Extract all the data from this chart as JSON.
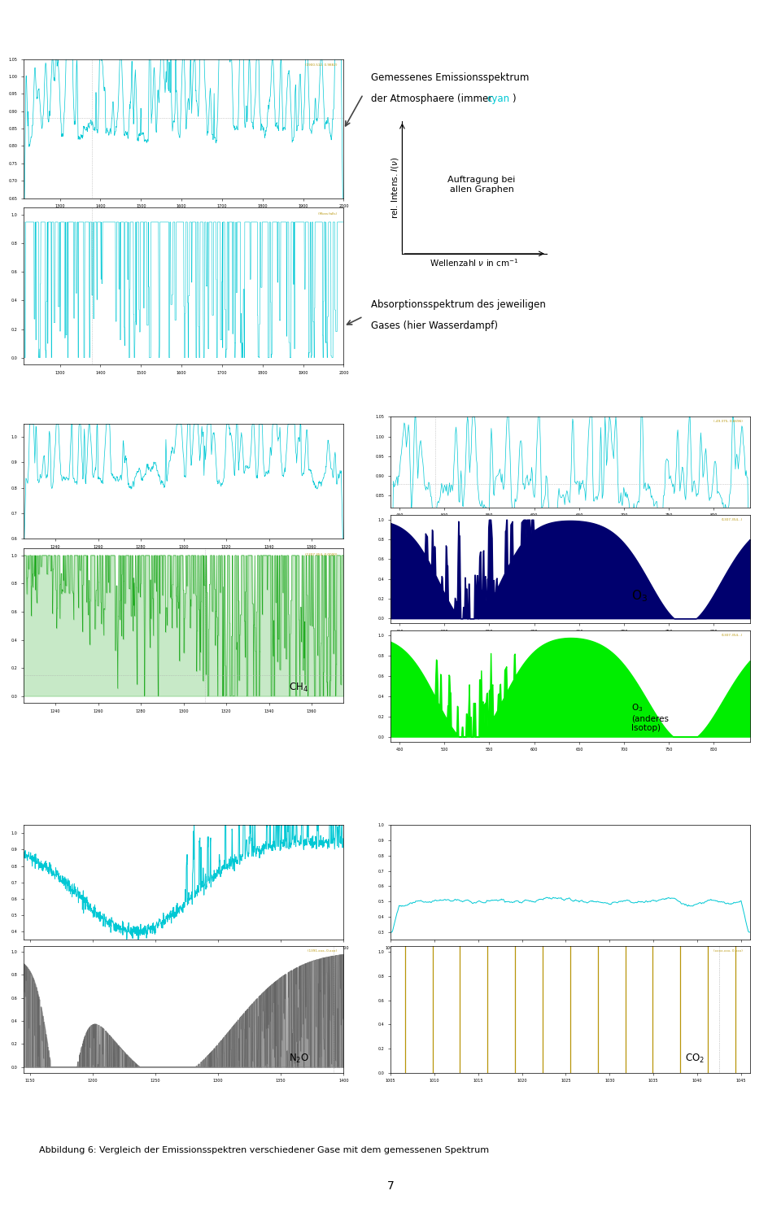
{
  "cyan_color": "#00c8d4",
  "green_color": "#00dd00",
  "dark_green_color": "#22aa22",
  "navy_color": "#00006e",
  "gray_color": "#666666",
  "dark_gold_color": "#b8960a",
  "background_color": "#ffffff",
  "title": "Abbildung 6: Vergleich der Emissionsspektren verschiedener Gase mit dem gemessenen Spektrum",
  "annot1_line1": "Gemessenes Emissionsspektrum",
  "annot1_line2a": "der Atmosphaere (immer ",
  "annot1_cyan": "cyan",
  "annot1_line2b": ")",
  "annot2_label": "Auftragung bei\nallen Graphen",
  "annot3_line1": "Absorptionsspektrum des jeweiligen",
  "annot3_line2": "Gases (hier Wasserdampf)",
  "ylabel_label": "rel. Intens. I(ν)",
  "xlabel_label": "Wellenzahl ν in cm⁻¹",
  "ch4_label": "CH",
  "ch4_sub": "4",
  "o3_label": "O",
  "o3_sub": "3",
  "o3iso_label": "O",
  "o3iso_sub": "3",
  "o3iso_extra": "(anderes\nIsotop)",
  "n2o_label": "N",
  "n2o_sub": "2",
  "n2o_extra": "O",
  "co2_label": "CO",
  "co2_sub": "2",
  "page": "7"
}
